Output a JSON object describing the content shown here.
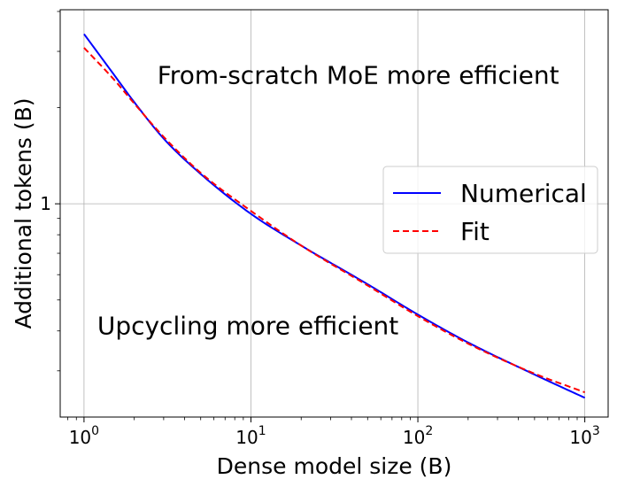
{
  "chart_data": {
    "type": "line",
    "xlabel": "Dense model size (B)",
    "ylabel": "Additional tokens (B)",
    "xscale": "log",
    "yscale": "log",
    "xlim": [
      0.72,
      1380
    ],
    "ylim": [
      0.215,
      4.05
    ],
    "xticks": [
      {
        "value": 1,
        "base": "10",
        "exp": "0"
      },
      {
        "value": 10,
        "base": "10",
        "exp": "1"
      },
      {
        "value": 100,
        "base": "10",
        "exp": "2"
      },
      {
        "value": 1000,
        "base": "10",
        "exp": "3"
      }
    ],
    "yticks": [
      {
        "value": 1,
        "label": "1"
      }
    ],
    "grid": true,
    "legend_position": "center-right",
    "annotations": [
      {
        "text": "From-scratch MoE more efficient",
        "x": 2.75,
        "y": 2.38
      },
      {
        "text": "Upcycling more efficient",
        "x": 1.2,
        "y": 0.39
      }
    ],
    "series": [
      {
        "name": "Numerical",
        "color": "#0000ff",
        "style": "solid",
        "x": [
          1,
          1.5,
          2,
          3,
          5,
          10,
          20,
          50,
          100,
          200,
          500,
          1000
        ],
        "y": [
          3.4,
          2.55,
          2.08,
          1.6,
          1.24,
          0.93,
          0.74,
          0.56,
          0.45,
          0.368,
          0.292,
          0.247
        ]
      },
      {
        "name": "Fit",
        "color": "#ff0000",
        "style": "dashed",
        "x": [
          1,
          1.5,
          2,
          3,
          5,
          10,
          20,
          50,
          100,
          200,
          500,
          1000
        ],
        "y": [
          3.08,
          2.46,
          2.06,
          1.62,
          1.25,
          0.95,
          0.74,
          0.555,
          0.445,
          0.365,
          0.294,
          0.257
        ]
      }
    ]
  }
}
